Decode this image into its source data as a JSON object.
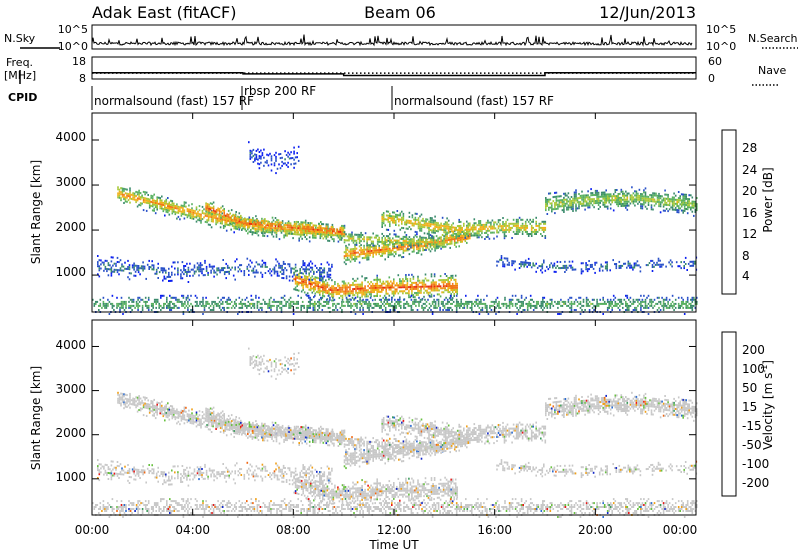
{
  "header": {
    "station": "Adak East (fitACF)",
    "beam": "Beam 06",
    "date": "12/Jun/2013"
  },
  "noise_panel": {
    "left_label": "N.Sky",
    "right_label": "N.Search",
    "left_ticks": [
      "10^5",
      "10^0"
    ],
    "right_ticks": [
      "10^5",
      "10^0"
    ]
  },
  "freq_panel": {
    "left_label_1": "Freq.",
    "left_label_2": "[MHz]",
    "right_label": "Nave",
    "left_ticks": [
      "18",
      "8"
    ],
    "right_ticks": [
      "60",
      "0"
    ],
    "cpid_label": "CPID",
    "freq_steps": [
      {
        "t": 0.0,
        "mhz": 10.8
      },
      {
        "t": 6.0,
        "mhz": 10.3
      },
      {
        "t": 10.0,
        "mhz": 9.6
      },
      {
        "t": 18.0,
        "mhz": 10.8
      },
      {
        "t": 24.0,
        "mhz": 10.8
      }
    ],
    "nave_steps": [
      {
        "t": 0.0,
        "n": 16
      },
      {
        "t": 6.0,
        "n": 16
      },
      {
        "t": 12.0,
        "n": 16
      },
      {
        "t": 24.0,
        "n": 16
      }
    ]
  },
  "cpid_segments": [
    {
      "start": 0.0,
      "end": 6.0,
      "label": "normalsound (fast) 157 RF"
    },
    {
      "start": 6.0,
      "end": 12.0,
      "label": "rbsp 200 RF"
    },
    {
      "start": 12.0,
      "end": 24.0,
      "label": "normalsound (fast) 157 RF"
    }
  ],
  "axes": {
    "xlabel": "Time UT",
    "xticks": [
      "00:00",
      "04:00",
      "08:00",
      "12:00",
      "16:00",
      "20:00",
      "00:00"
    ],
    "xlim": [
      0,
      24
    ],
    "ylabel": "Slant Range [km]",
    "yticks": [
      "1000",
      "2000",
      "3000",
      "4000"
    ],
    "ylim": [
      180,
      4600
    ]
  },
  "power_colorbar": {
    "label": "Power [dB]",
    "ticks": [
      "4",
      "8",
      "12",
      "16",
      "20",
      "24",
      "28"
    ],
    "colors": [
      "#0a1ef0",
      "#2850c8",
      "#3a8a6c",
      "#58b060",
      "#a8c838",
      "#f0b018",
      "#f07818",
      "#e83010"
    ]
  },
  "velocity_colorbar": {
    "label": "Velocity [m s",
    "label_sup": "-1",
    "label_end": "]",
    "ticks": [
      "200",
      "100",
      "50",
      "15",
      "-15",
      "-50",
      "-100",
      "-200"
    ],
    "colors": [
      "#1428c8",
      "#2c6cd0",
      "#3c9c5c",
      "#68c040",
      "#c8c8c8",
      "#f0a018",
      "#f06814",
      "#e81818"
    ]
  },
  "chart_data": [
    {
      "type": "heatmap",
      "title": "Power [dB]",
      "xlabel": "Time UT",
      "ylabel": "Slant Range [km]",
      "xlim": [
        0,
        24
      ],
      "ylim": [
        180,
        4600
      ],
      "bands": [
        {
          "t": [
            1.0,
            4.5,
            6.5,
            10.0
          ],
          "r": [
            2800,
            2300,
            2050,
            1900
          ],
          "w": 140,
          "peak_db": 24,
          "density": 0.9
        },
        {
          "t": [
            4.5,
            6.0,
            8.0,
            10.0
          ],
          "r": [
            2500,
            2150,
            2050,
            1950
          ],
          "w": 120,
          "peak_db": 28,
          "density": 0.8
        },
        {
          "t": [
            10.0,
            11.5,
            13.5,
            15.0
          ],
          "r": [
            1450,
            1550,
            1700,
            1850
          ],
          "w": 140,
          "peak_db": 26,
          "density": 0.9
        },
        {
          "t": [
            10.0,
            12.0,
            14.0
          ],
          "r": [
            1800,
            1750,
            1700
          ],
          "w": 110,
          "peak_db": 20,
          "density": 0.7
        },
        {
          "t": [
            11.5,
            14.5,
            16.5,
            18.0
          ],
          "r": [
            2250,
            2000,
            2050,
            2050
          ],
          "w": 150,
          "peak_db": 22,
          "density": 0.8
        },
        {
          "t": [
            8.0,
            9.5,
            11.0,
            14.5
          ],
          "r": [
            900,
            650,
            700,
            750
          ],
          "w": 170,
          "peak_db": 28,
          "density": 0.85
        },
        {
          "t": [
            18.0,
            19.5,
            21.5,
            24.0
          ],
          "r": [
            2550,
            2650,
            2700,
            2550
          ],
          "w": 160,
          "peak_db": 18,
          "density": 0.85
        },
        {
          "t": [
            0.2,
            3.0,
            6.5,
            9.5
          ],
          "r": [
            1200,
            1050,
            1150,
            1050
          ],
          "w": 150,
          "peak_db": 8,
          "density": 0.45
        },
        {
          "t": [
            16.0,
            18.5,
            21.0,
            24.0
          ],
          "r": [
            1300,
            1150,
            1200,
            1250
          ],
          "w": 90,
          "peak_db": 8,
          "density": 0.5
        },
        {
          "t": [
            6.2,
            7.2,
            8.2
          ],
          "r": [
            3700,
            3500,
            3600
          ],
          "w": 160,
          "peak_db": 6,
          "density": 0.4
        },
        {
          "t": [
            0.0,
            24.0
          ],
          "r": [
            330,
            330
          ],
          "w": 130,
          "peak_db": 14,
          "density": 0.55
        }
      ]
    },
    {
      "type": "heatmap",
      "title": "Velocity [m s^-1]",
      "xlabel": "Time UT",
      "ylabel": "Slant Range [km]",
      "xlim": [
        0,
        24
      ],
      "ylim": [
        180,
        4600
      ],
      "dominant_velocity_ms": 0,
      "notes": "Mostly ground scatter (grey) along the same echo bands; scattered positive/negative values near 1000 km and below 600 km"
    }
  ]
}
